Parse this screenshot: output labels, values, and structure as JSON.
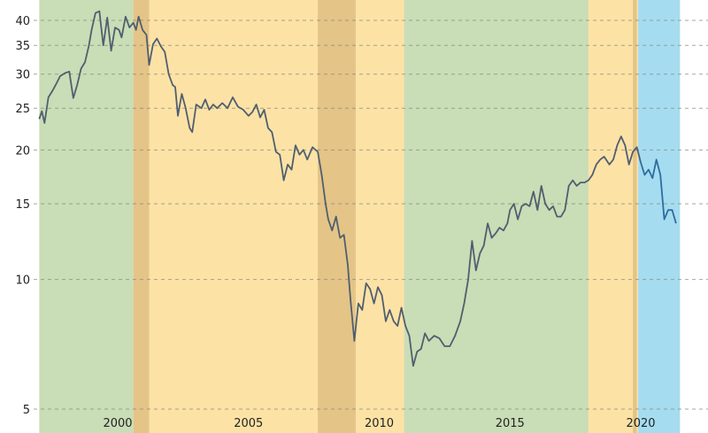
{
  "chart_data": {
    "type": "line",
    "title": "",
    "xlabel": "",
    "ylabel": "",
    "y_scale": "log",
    "ylim": [
      4.8,
      44
    ],
    "xlim": [
      1997.0,
      2021.5
    ],
    "x_ticks": [
      2000,
      2005,
      2010,
      2015,
      2020
    ],
    "y_ticks": [
      5,
      10,
      15,
      20,
      25,
      30,
      35,
      40
    ],
    "grid": "horizontal dashed",
    "legend": "none",
    "regime_bands": [
      {
        "start": 1997.0,
        "end": 2000.6,
        "color": "#c9ddb6"
      },
      {
        "start": 2000.6,
        "end": 2010.95,
        "color": "#fde2a6"
      },
      {
        "start": 2010.95,
        "end": 2018.0,
        "color": "#c9ddb6"
      },
      {
        "start": 2018.0,
        "end": 2019.9,
        "color": "#fde2a6"
      },
      {
        "start": 2019.9,
        "end": 2021.5,
        "color": "#a5dcf0"
      }
    ],
    "recession_bands": [
      {
        "start": 2000.6,
        "end": 2001.2
      },
      {
        "start": 2007.65,
        "end": 2009.1
      },
      {
        "start": 2019.7,
        "end": 2019.85
      }
    ],
    "colors": {
      "line": "#4f5f6f",
      "line_latest": "#2e6d9e",
      "recession": "#d9b87a"
    },
    "series": [
      {
        "values": [
          [
            1997.0,
            23.6
          ],
          [
            1997.1,
            24.6
          ],
          [
            1997.2,
            23.1
          ],
          [
            1997.35,
            26.5
          ],
          [
            1997.5,
            27.4
          ],
          [
            1997.65,
            28.5
          ],
          [
            1997.8,
            29.7
          ],
          [
            1998.0,
            30.2
          ],
          [
            1998.15,
            30.4
          ],
          [
            1998.3,
            26.4
          ],
          [
            1998.45,
            28.3
          ],
          [
            1998.6,
            30.9
          ],
          [
            1998.75,
            32.0
          ],
          [
            1998.9,
            35.0
          ],
          [
            1999.0,
            38.0
          ],
          [
            1999.15,
            41.6
          ],
          [
            1999.3,
            42.0
          ],
          [
            1999.45,
            35.0
          ],
          [
            1999.6,
            40.6
          ],
          [
            1999.75,
            34.0
          ],
          [
            1999.9,
            38.5
          ],
          [
            2000.05,
            38.0
          ],
          [
            2000.15,
            36.5
          ],
          [
            2000.3,
            40.8
          ],
          [
            2000.45,
            38.5
          ],
          [
            2000.6,
            39.5
          ],
          [
            2000.7,
            38.0
          ],
          [
            2000.8,
            40.8
          ],
          [
            2000.95,
            38.0
          ],
          [
            2001.1,
            37.0
          ],
          [
            2001.2,
            31.5
          ],
          [
            2001.35,
            35.2
          ],
          [
            2001.5,
            36.3
          ],
          [
            2001.65,
            34.8
          ],
          [
            2001.8,
            33.8
          ],
          [
            2001.95,
            30.0
          ],
          [
            2002.1,
            28.3
          ],
          [
            2002.2,
            28.0
          ],
          [
            2002.3,
            24.0
          ],
          [
            2002.45,
            27.0
          ],
          [
            2002.6,
            25.0
          ],
          [
            2002.75,
            22.5
          ],
          [
            2002.85,
            22.0
          ],
          [
            2003.0,
            25.5
          ],
          [
            2003.2,
            25.0
          ],
          [
            2003.35,
            26.2
          ],
          [
            2003.5,
            24.8
          ],
          [
            2003.65,
            25.5
          ],
          [
            2003.8,
            25.0
          ],
          [
            2004.0,
            25.7
          ],
          [
            2004.2,
            25.0
          ],
          [
            2004.4,
            26.5
          ],
          [
            2004.6,
            25.2
          ],
          [
            2004.8,
            24.8
          ],
          [
            2005.0,
            24.0
          ],
          [
            2005.15,
            24.5
          ],
          [
            2005.3,
            25.5
          ],
          [
            2005.45,
            23.8
          ],
          [
            2005.6,
            24.8
          ],
          [
            2005.75,
            22.5
          ],
          [
            2005.9,
            22.0
          ],
          [
            2006.05,
            19.8
          ],
          [
            2006.2,
            19.5
          ],
          [
            2006.35,
            17.0
          ],
          [
            2006.5,
            18.5
          ],
          [
            2006.65,
            18.0
          ],
          [
            2006.8,
            20.5
          ],
          [
            2006.95,
            19.5
          ],
          [
            2007.1,
            20.0
          ],
          [
            2007.25,
            19.0
          ],
          [
            2007.45,
            20.3
          ],
          [
            2007.65,
            19.8
          ],
          [
            2007.8,
            17.5
          ],
          [
            2007.95,
            15.0
          ],
          [
            2008.05,
            13.8
          ],
          [
            2008.2,
            13.0
          ],
          [
            2008.35,
            14.0
          ],
          [
            2008.5,
            12.5
          ],
          [
            2008.65,
            12.7
          ],
          [
            2008.8,
            10.8
          ],
          [
            2008.9,
            9.0
          ],
          [
            2009.05,
            7.2
          ],
          [
            2009.2,
            8.8
          ],
          [
            2009.35,
            8.5
          ],
          [
            2009.5,
            9.8
          ],
          [
            2009.65,
            9.5
          ],
          [
            2009.8,
            8.8
          ],
          [
            2009.95,
            9.6
          ],
          [
            2010.1,
            9.2
          ],
          [
            2010.25,
            8.0
          ],
          [
            2010.4,
            8.5
          ],
          [
            2010.55,
            8.0
          ],
          [
            2010.7,
            7.8
          ],
          [
            2010.85,
            8.6
          ],
          [
            2011.0,
            7.8
          ],
          [
            2011.15,
            7.4
          ],
          [
            2011.3,
            6.3
          ],
          [
            2011.45,
            6.8
          ],
          [
            2011.6,
            6.9
          ],
          [
            2011.75,
            7.5
          ],
          [
            2011.9,
            7.2
          ],
          [
            2012.1,
            7.4
          ],
          [
            2012.3,
            7.3
          ],
          [
            2012.5,
            7.0
          ],
          [
            2012.7,
            7.0
          ],
          [
            2012.9,
            7.4
          ],
          [
            2013.1,
            8.0
          ],
          [
            2013.25,
            8.8
          ],
          [
            2013.4,
            10.0
          ],
          [
            2013.55,
            12.3
          ],
          [
            2013.7,
            10.5
          ],
          [
            2013.85,
            11.5
          ],
          [
            2014.0,
            12.0
          ],
          [
            2014.15,
            13.5
          ],
          [
            2014.3,
            12.5
          ],
          [
            2014.45,
            12.8
          ],
          [
            2014.6,
            13.2
          ],
          [
            2014.75,
            13.0
          ],
          [
            2014.9,
            13.5
          ],
          [
            2015.0,
            14.5
          ],
          [
            2015.15,
            15.0
          ],
          [
            2015.3,
            13.8
          ],
          [
            2015.45,
            14.8
          ],
          [
            2015.6,
            15.0
          ],
          [
            2015.75,
            14.8
          ],
          [
            2015.9,
            16.0
          ],
          [
            2016.05,
            14.5
          ],
          [
            2016.2,
            16.5
          ],
          [
            2016.35,
            15.0
          ],
          [
            2016.5,
            14.5
          ],
          [
            2016.65,
            14.8
          ],
          [
            2016.8,
            14.0
          ],
          [
            2016.95,
            14.0
          ],
          [
            2017.1,
            14.5
          ],
          [
            2017.25,
            16.5
          ],
          [
            2017.4,
            17.0
          ],
          [
            2017.55,
            16.5
          ],
          [
            2017.7,
            16.8
          ],
          [
            2017.85,
            16.8
          ],
          [
            2018.0,
            17.0
          ],
          [
            2018.15,
            17.5
          ],
          [
            2018.3,
            18.5
          ],
          [
            2018.45,
            19.0
          ],
          [
            2018.6,
            19.3
          ],
          [
            2018.8,
            18.5
          ],
          [
            2018.95,
            19.0
          ],
          [
            2019.1,
            20.5
          ],
          [
            2019.25,
            21.5
          ],
          [
            2019.4,
            20.5
          ],
          [
            2019.55,
            18.5
          ],
          [
            2019.7,
            19.8
          ],
          [
            2019.85,
            20.3
          ],
          [
            2020.0,
            18.7
          ],
          [
            2020.15,
            17.5
          ],
          [
            2020.3,
            18.0
          ],
          [
            2020.45,
            17.2
          ],
          [
            2020.6,
            19.0
          ],
          [
            2020.75,
            17.5
          ],
          [
            2020.9,
            13.8
          ],
          [
            2021.05,
            14.5
          ],
          [
            2021.2,
            14.5
          ],
          [
            2021.35,
            13.5
          ]
        ]
      }
    ]
  }
}
